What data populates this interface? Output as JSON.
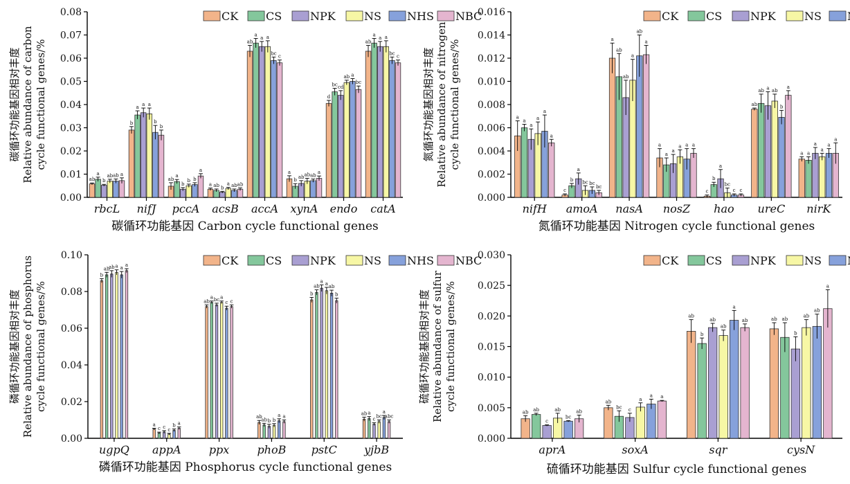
{
  "legend": [
    "CK",
    "CS",
    "NPK",
    "NS",
    "NHS",
    "NBC"
  ],
  "colors": [
    "#f2b48a",
    "#84c79c",
    "#a99fd2",
    "#f7f7a5",
    "#86a1db",
    "#e4b5cf"
  ],
  "chart_data": [
    {
      "type": "bar",
      "xlabel": "碳循环功能基因 Carbon cycle functional genes",
      "ylabel": [
        "碳循环功能基因相对丰度",
        "Relative abundance of carbon",
        "cycle functional genes/%"
      ],
      "ylim": [
        0,
        0.08
      ],
      "yticks": [
        "0.00",
        "0.01",
        "0.02",
        "0.03",
        "0.04",
        "0.05",
        "0.06",
        "0.07",
        "0.08"
      ],
      "legend_position": "top-right",
      "categories": [
        "rbcL",
        "nifJ",
        "pccA",
        "acsB",
        "accA",
        "xynA",
        "endo",
        "catA"
      ],
      "series": [
        {
          "name": "CK",
          "values": [
            0.0058,
            0.029,
            0.0048,
            0.0035,
            0.063,
            0.008,
            0.0405,
            0.063
          ]
        },
        {
          "name": "CS",
          "values": [
            0.0078,
            0.0355,
            0.0068,
            0.003,
            0.0665,
            0.0048,
            0.0455,
            0.0665
          ]
        },
        {
          "name": "NPK",
          "values": [
            0.0052,
            0.0365,
            0.0035,
            0.0022,
            0.065,
            0.006,
            0.044,
            0.065
          ]
        },
        {
          "name": "NS",
          "values": [
            0.007,
            0.036,
            0.005,
            0.0038,
            0.065,
            0.007,
            0.0495,
            0.065
          ]
        },
        {
          "name": "NHS",
          "values": [
            0.007,
            0.028,
            0.0055,
            0.003,
            0.059,
            0.0072,
            0.05,
            0.059
          ]
        },
        {
          "name": "NBC",
          "values": [
            0.0072,
            0.0268,
            0.0092,
            0.0035,
            0.058,
            0.0082,
            0.0465,
            0.058
          ]
        }
      ],
      "errors": [
        [
          0.0004,
          0.0015,
          0.0015,
          0.0005,
          0.0025,
          0.0013,
          0.0013,
          0.0025
        ],
        [
          0.0009,
          0.0018,
          0.0009,
          0.0006,
          0.002,
          0.0011,
          0.0015,
          0.002
        ],
        [
          0.0004,
          0.002,
          0.0007,
          0.0004,
          0.0022,
          0.0012,
          0.002,
          0.0022
        ],
        [
          0.0008,
          0.0025,
          0.0007,
          0.0005,
          0.0025,
          0.0012,
          0.001,
          0.0025
        ],
        [
          0.0009,
          0.003,
          0.0008,
          0.0006,
          0.0015,
          0.0007,
          0.0012,
          0.0015
        ],
        [
          0.0012,
          0.0022,
          0.001,
          0.0006,
          0.0012,
          0.001,
          0.0015,
          0.0012
        ]
      ],
      "letters": [
        [
          "ab",
          "b",
          "ab",
          "a",
          "ab",
          "a",
          "d",
          "ab"
        ],
        [
          "a",
          "a",
          "a",
          "ab",
          "a",
          "b",
          "bc",
          "a"
        ],
        [
          "b",
          "a",
          "b",
          "b",
          "a",
          "ab",
          "cd",
          "a"
        ],
        [
          "ab",
          "a",
          "b",
          "a",
          "a",
          "ab",
          "ab",
          "a"
        ],
        [
          "ab",
          "b",
          "b",
          "ab",
          "bc",
          "ab",
          "a",
          "bc"
        ],
        [
          "a",
          "b",
          "a",
          "ab",
          "c",
          "a",
          "bc",
          "c"
        ]
      ]
    },
    {
      "type": "bar",
      "xlabel": "氮循环功能基因 Nitrogen cycle functional genes",
      "ylabel": [
        "氮循环功能基因相对丰度",
        "Relative abundance of nitrogen",
        "cycle functional genes/%"
      ],
      "ylim": [
        0,
        0.016
      ],
      "yticks": [
        "0.000",
        "0.002",
        "0.004",
        "0.006",
        "0.008",
        "0.010",
        "0.012",
        "0.014",
        "0.016"
      ],
      "legend_position": "top-right",
      "categories": [
        "nifH",
        "amoA",
        "nasA",
        "nosZ",
        "hao",
        "ureC",
        "nirK"
      ],
      "series": [
        {
          "name": "CK",
          "values": [
            0.0053,
            0.0002,
            0.012,
            0.0034,
            0.0001,
            0.0076,
            0.0033
          ]
        },
        {
          "name": "CS",
          "values": [
            0.006,
            0.001,
            0.0104,
            0.0028,
            0.0011,
            0.0081,
            0.0032
          ]
        },
        {
          "name": "NPK",
          "values": [
            0.005,
            0.0016,
            0.0086,
            0.0029,
            0.0016,
            0.0079,
            0.0038
          ]
        },
        {
          "name": "NS",
          "values": [
            0.0055,
            0.0006,
            0.0101,
            0.0035,
            0.0004,
            0.0083,
            0.0035
          ]
        },
        {
          "name": "NHS",
          "values": [
            0.0057,
            0.0006,
            0.0122,
            0.0033,
            0.0002,
            0.0069,
            0.0038
          ]
        },
        {
          "name": "NBC",
          "values": [
            0.0047,
            0.0004,
            0.0123,
            0.0038,
            0.0002,
            0.0088,
            0.0038
          ]
        }
      ],
      "errors": [
        [
          0.0013,
          0.0001,
          0.0013,
          0.0008,
          0.0001,
          0.0001,
          0.0002
        ],
        [
          0.0003,
          0.0002,
          0.002,
          0.0006,
          0.0002,
          0.0008,
          0.0003
        ],
        [
          0.0009,
          0.0005,
          0.0015,
          0.0008,
          0.0008,
          0.0012,
          0.0005
        ],
        [
          0.001,
          0.0004,
          0.0018,
          0.0006,
          0.0004,
          0.0006,
          0.0003
        ],
        [
          0.0014,
          0.0003,
          0.0018,
          0.0009,
          0.0001,
          0.0006,
          0.0004
        ],
        [
          0.0003,
          0.0002,
          0.0008,
          0.0004,
          0.0001,
          0.0004,
          0.0009
        ]
      ],
      "letters": [
        [
          "a",
          "c",
          "a",
          "a",
          "c",
          "ab",
          "a"
        ],
        [
          "a",
          "b",
          "ab",
          "a",
          "b",
          "ab",
          "a"
        ],
        [
          "a",
          "a",
          "ab",
          "a",
          "a",
          "a",
          "a"
        ],
        [
          "a",
          "bc",
          "a",
          "a",
          "bc",
          "ab",
          "a"
        ],
        [
          "a",
          "bc",
          "ab",
          "a",
          "c",
          "b",
          "a"
        ],
        [
          "a",
          "bc",
          "a",
          "a",
          "c",
          "a",
          "a"
        ]
      ]
    },
    {
      "type": "bar",
      "xlabel": "磷循环功能基因 Phosphorus cycle functional genes",
      "ylabel": [
        "磷循环功能基因相对丰度",
        "Relative abundance of phosphorus",
        "cycle functional genes/%"
      ],
      "ylim": [
        0,
        0.11
      ],
      "yticks": [
        "0.00",
        "0.02",
        "0.04",
        "0.06",
        "0.08",
        "0.10"
      ],
      "legend_position": "top-right",
      "categories": [
        "ugpQ",
        "appA",
        "ppx",
        "phoB",
        "pstC",
        "yjbB"
      ],
      "series": [
        {
          "name": "CK",
          "values": [
            0.0945,
            0.0055,
            0.079,
            0.0095,
            0.083,
            0.0115
          ]
        },
        {
          "name": "CS",
          "values": [
            0.098,
            0.0032,
            0.0815,
            0.008,
            0.0875,
            0.0118
          ]
        },
        {
          "name": "NPK",
          "values": [
            0.0985,
            0.0038,
            0.08,
            0.0072,
            0.09,
            0.0085
          ]
        },
        {
          "name": "NS",
          "values": [
            0.0995,
            0.0025,
            0.0815,
            0.0078,
            0.0885,
            0.01
          ]
        },
        {
          "name": "NHS",
          "values": [
            0.098,
            0.0048,
            0.078,
            0.0105,
            0.087,
            0.0125
          ]
        },
        {
          "name": "NBC",
          "values": [
            0.1005,
            0.006,
            0.079,
            0.01,
            0.0825,
            0.01
          ]
        }
      ],
      "errors": [
        [
          0.0012,
          0.0005,
          0.001,
          0.0012,
          0.0015,
          0.0012
        ],
        [
          0.0015,
          0.0005,
          0.0008,
          0.001,
          0.0015,
          0.0012
        ],
        [
          0.002,
          0.0008,
          0.001,
          0.0012,
          0.002,
          0.0008
        ],
        [
          0.0015,
          0.0005,
          0.0008,
          0.001,
          0.002,
          0.001
        ],
        [
          0.002,
          0.0008,
          0.0012,
          0.0012,
          0.0018,
          0.0012
        ],
        [
          0.0012,
          0.0008,
          0.001,
          0.001,
          0.0015,
          0.001
        ]
      ],
      "letters": [
        [
          "b",
          "a",
          "ab",
          "ab",
          "b",
          "ab"
        ],
        [
          "ab",
          "c",
          "a",
          "ab",
          "ab",
          "a"
        ],
        [
          "ab",
          "c",
          "bc",
          "b",
          "a",
          "c"
        ],
        [
          "a",
          "c",
          "a",
          "b",
          "a",
          "bc"
        ],
        [
          "a",
          "b",
          "c",
          "a",
          "ab",
          "a"
        ],
        [
          "a",
          "a",
          "c",
          "a",
          "b",
          "abc"
        ]
      ]
    },
    {
      "type": "bar",
      "xlabel": "硫循环功能基因 Sulfur cycle functional genes",
      "ylabel": [
        "硫循环功能基因相对丰度",
        "Relative abundance of sulfur",
        "cycle functional genes/%"
      ],
      "ylim": [
        0,
        0.03
      ],
      "yticks": [
        "0.000",
        "0.005",
        "0.010",
        "0.015",
        "0.020",
        "0.025",
        "0.030"
      ],
      "legend_position": "top-right",
      "categories": [
        "aprA",
        "soxA",
        "sqr",
        "cysN"
      ],
      "series": [
        {
          "name": "CK",
          "values": [
            0.0032,
            0.005,
            0.0175,
            0.0179
          ]
        },
        {
          "name": "CS",
          "values": [
            0.0039,
            0.0036,
            0.0155,
            0.0165
          ]
        },
        {
          "name": "NPK",
          "values": [
            0.0021,
            0.0034,
            0.0181,
            0.0146
          ]
        },
        {
          "name": "NS",
          "values": [
            0.0033,
            0.0051,
            0.0168,
            0.0181
          ]
        },
        {
          "name": "NHS",
          "values": [
            0.0028,
            0.0056,
            0.0193,
            0.0183
          ]
        },
        {
          "name": "NBC",
          "values": [
            0.0032,
            0.0061,
            0.0181,
            0.0212
          ]
        }
      ],
      "errors": [
        [
          0.0005,
          0.0004,
          0.0019,
          0.001
        ],
        [
          0.0002,
          0.0009,
          0.0009,
          0.0024
        ],
        [
          0.0001,
          0.0007,
          0.0007,
          0.002
        ],
        [
          0.0008,
          0.0007,
          0.0009,
          0.0013
        ],
        [
          0.0001,
          0.0008,
          0.0016,
          0.002
        ],
        [
          0.0006,
          0.0001,
          0.0006,
          0.0031
        ]
      ],
      "letters": [
        [
          "ab",
          "ab",
          "ab",
          "ab"
        ],
        [
          "ab",
          "bc",
          "b",
          "ab"
        ],
        [
          "c",
          "c",
          "ab",
          "b"
        ],
        [
          "ab",
          "a",
          "ab",
          "ab"
        ],
        [
          "bc",
          "a",
          "a",
          "ab"
        ],
        [
          "ab",
          "a",
          "ab",
          "a"
        ]
      ]
    }
  ]
}
